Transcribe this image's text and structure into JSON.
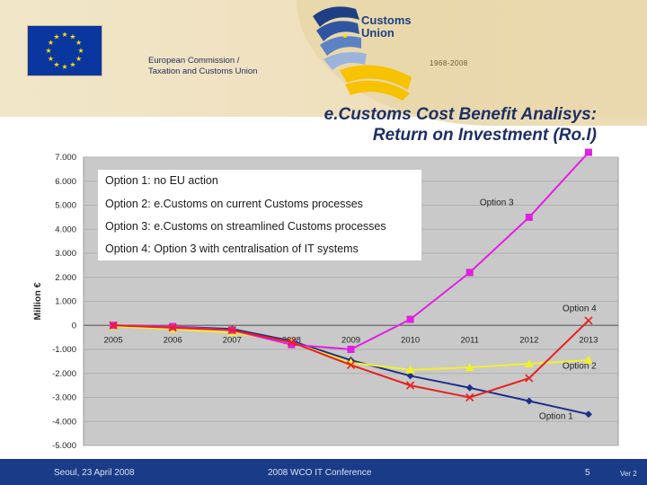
{
  "header": {
    "org_line1": "European Commission /",
    "org_line2": "Taxation and Customs Union",
    "logo_line1": "Customs",
    "logo_line2": "Union",
    "years": "1968-2008",
    "icons": [
      "eu-flag-icon",
      "customs-union-logo-icon"
    ]
  },
  "title": {
    "line1": "e.Customs Cost Benefit Analisys:",
    "line2": "Return on Investment (Ro.I)"
  },
  "legend": {
    "items": [
      "Option 1: no EU action",
      "Option 2: e.Customs on current Customs processes",
      "Option 3: e.Customs on streamlined Customs processes",
      "Option 4: Option 3 with centralisation of IT systems"
    ]
  },
  "footer": {
    "left": "Seoul, 23 April 2008",
    "center": "2008 WCO IT Conference",
    "page": "5",
    "version": "Ver 2"
  },
  "chart_data": {
    "type": "line",
    "ylabel": "Million €",
    "ylim": [
      -5000,
      7000
    ],
    "y_ticks": [
      "7.000",
      "6.000",
      "5.000",
      "4.000",
      "3.000",
      "2.000",
      "1.000",
      "0",
      "-1.000",
      "-2.000",
      "-3.000",
      "-4.000",
      "-5.000"
    ],
    "y_tick_values": [
      7000,
      6000,
      5000,
      4000,
      3000,
      2000,
      1000,
      0,
      -1000,
      -2000,
      -3000,
      -4000,
      -5000
    ],
    "categories": [
      "2005",
      "2006",
      "2007",
      "2008",
      "2009",
      "2010",
      "2011",
      "2012",
      "2013"
    ],
    "grid": true,
    "background": "#c9c9c9",
    "series": [
      {
        "label": "Option 1",
        "color": "#1f2f8a",
        "marker": "diamond",
        "values": [
          0,
          -50,
          -150,
          -650,
          -1450,
          -2100,
          -2600,
          -3150,
          -3700
        ]
      },
      {
        "label": "Option 2",
        "color": "#f2f02a",
        "marker": "triangle",
        "values": [
          -50,
          -150,
          -300,
          -700,
          -1550,
          -1850,
          -1750,
          -1600,
          -1450
        ]
      },
      {
        "label": "Option 3",
        "color": "#e020e0",
        "marker": "square",
        "values": [
          0,
          -50,
          -200,
          -800,
          -1000,
          250,
          2200,
          4500,
          7200
        ]
      },
      {
        "label": "Option 4",
        "color": "#e82020",
        "marker": "x",
        "values": [
          0,
          -100,
          -200,
          -700,
          -1650,
          -2500,
          -3000,
          -2200,
          200
        ]
      }
    ]
  }
}
